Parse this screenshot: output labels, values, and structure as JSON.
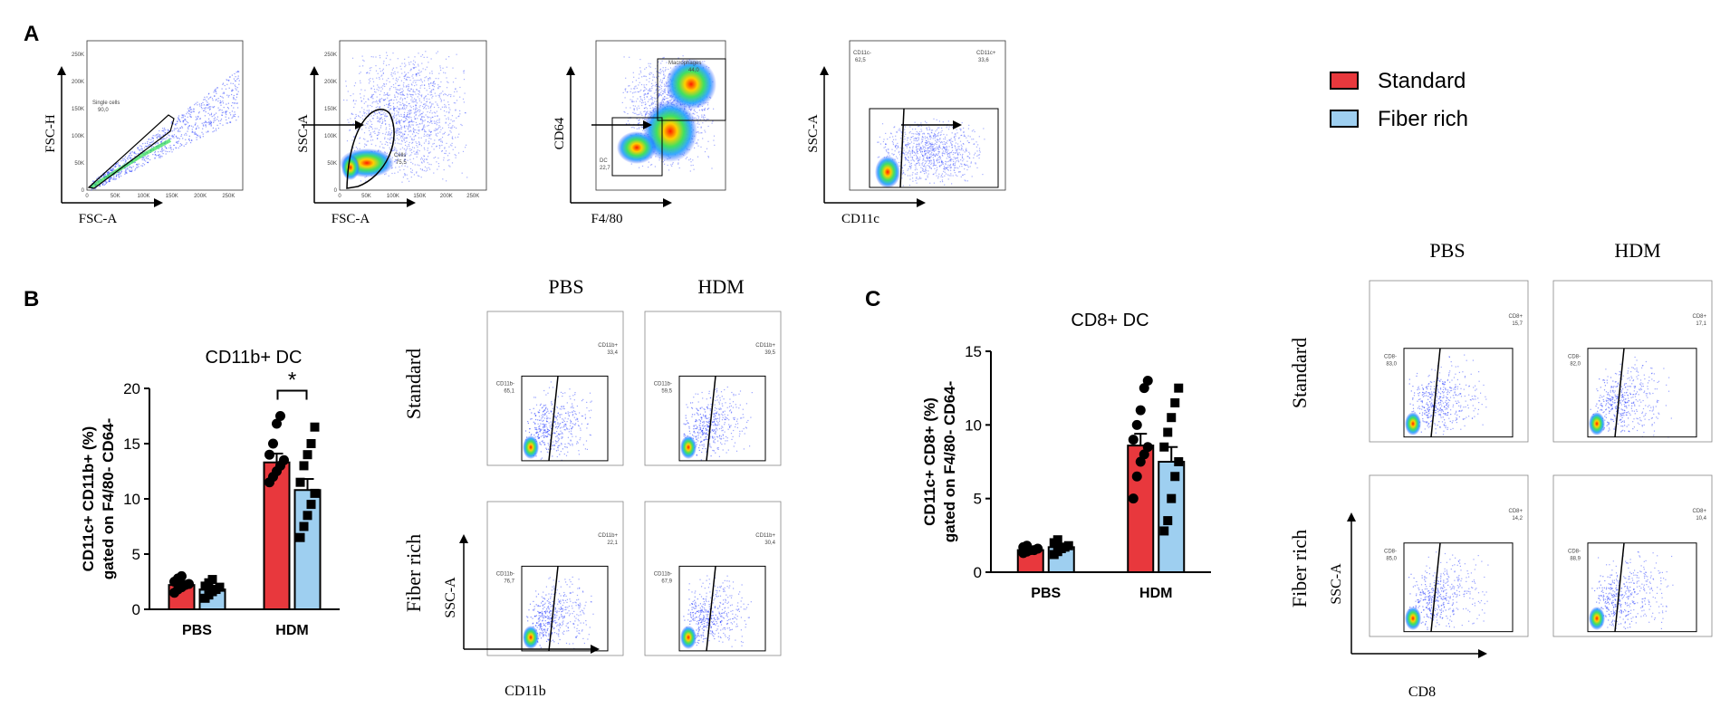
{
  "panel_labels": {
    "a": "A",
    "b": "B",
    "c": "C"
  },
  "legend": [
    {
      "label": "Standard",
      "color": "#e8383d"
    },
    {
      "label": "Fiber rich",
      "color": "#9ecff0"
    }
  ],
  "gating": [
    {
      "ylabel": "FSC-H",
      "xlabel": "FSC-A",
      "gates": [
        {
          "name": "Single cells",
          "value": "90,0"
        }
      ]
    },
    {
      "ylabel": "SSC-A",
      "xlabel": "FSC-A",
      "gates": [
        {
          "name": "Cells",
          "value": "75,5"
        }
      ]
    },
    {
      "ylabel": "CD64",
      "xlabel": "F4/80",
      "gates": [
        {
          "name": "Macrophages",
          "value": "44,0"
        },
        {
          "name": "DC",
          "value": "22,7"
        }
      ]
    },
    {
      "ylabel": "SSC-A",
      "xlabel": "CD11c",
      "gates": [
        {
          "name": "CD11c-",
          "value": "62,5"
        },
        {
          "name": "CD11c+",
          "value": "33,6"
        }
      ]
    }
  ],
  "flow_b": {
    "col_headers": [
      "PBS",
      "HDM"
    ],
    "row_headers": [
      "Standard",
      "Fiber rich"
    ],
    "ylabel": "SSC-A",
    "xlabel": "CD11b",
    "cells": [
      {
        "neg": "CD11b-",
        "neg_val": "65,1",
        "pos": "CD11b+",
        "pos_val": "33,4"
      },
      {
        "neg": "CD11b-",
        "neg_val": "59,5",
        "pos": "CD11b+",
        "pos_val": "39,5"
      },
      {
        "neg": "CD11b-",
        "neg_val": "76,7",
        "pos": "CD11b+",
        "pos_val": "22,1"
      },
      {
        "neg": "CD11b-",
        "neg_val": "67,9",
        "pos": "CD11b+",
        "pos_val": "30,4"
      }
    ]
  },
  "flow_c": {
    "col_headers": [
      "PBS",
      "HDM"
    ],
    "row_headers": [
      "Standard",
      "Fiber rich"
    ],
    "ylabel": "SSC-A",
    "xlabel": "CD8",
    "cells": [
      {
        "neg": "CD8-",
        "neg_val": "83,0",
        "pos": "CD8+",
        "pos_val": "15,7"
      },
      {
        "neg": "CD8-",
        "neg_val": "82,0",
        "pos": "CD8+",
        "pos_val": "17,1"
      },
      {
        "neg": "CD8-",
        "neg_val": "85,0",
        "pos": "CD8+",
        "pos_val": "14,2"
      },
      {
        "neg": "CD8-",
        "neg_val": "88,9",
        "pos": "CD8+",
        "pos_val": "10,4"
      }
    ]
  },
  "chart_data": [
    {
      "type": "bar",
      "title": "CD11b+ DC",
      "ylabel": "CD11c+ CD11b+ (%)\ngated on F4/80- CD64-",
      "categories": [
        "PBS",
        "HDM"
      ],
      "ylim": [
        0,
        20
      ],
      "yticks": [
        0,
        5,
        10,
        15,
        20
      ],
      "series": [
        {
          "name": "Standard",
          "values": [
            2.2,
            13.3
          ],
          "sem": [
            0.3,
            0.8
          ],
          "points": [
            [
              1.5,
              1.8,
              2.0,
              2.2,
              2.3,
              2.5,
              2.8,
              3.0
            ],
            [
              11.5,
              12.0,
              12.5,
              13.0,
              13.5,
              14.0,
              15.0,
              16.8,
              17.5
            ]
          ]
        },
        {
          "name": "Fiber rich",
          "values": [
            1.8,
            10.8
          ],
          "sem": [
            0.2,
            1.0
          ],
          "points": [
            [
              1.0,
              1.3,
              1.6,
              1.8,
              2.0,
              2.1,
              2.4,
              2.7
            ],
            [
              6.5,
              7.5,
              8.5,
              9.5,
              10.5,
              11.5,
              13.0,
              14.0,
              15.0,
              16.5
            ]
          ]
        }
      ],
      "significance": [
        {
          "category": "HDM",
          "label": "*"
        }
      ]
    },
    {
      "type": "bar",
      "title": "CD8+ DC",
      "ylabel": "CD11c+ CD8+ (%)\ngated on F4/80- CD64-",
      "categories": [
        "PBS",
        "HDM"
      ],
      "ylim": [
        0,
        15
      ],
      "yticks": [
        0,
        5,
        10,
        15
      ],
      "series": [
        {
          "name": "Standard",
          "values": [
            1.5,
            8.6
          ],
          "sem": [
            0.1,
            0.8
          ],
          "points": [
            [
              1.3,
              1.4,
              1.5,
              1.5,
              1.6,
              1.7,
              1.8
            ],
            [
              5.0,
              6.5,
              7.5,
              8.0,
              8.5,
              9.0,
              10.0,
              11.0,
              12.5,
              13.0
            ]
          ]
        },
        {
          "name": "Fiber rich",
          "values": [
            1.7,
            7.5
          ],
          "sem": [
            0.15,
            1.0
          ],
          "points": [
            [
              1.2,
              1.4,
              1.6,
              1.7,
              1.8,
              2.0,
              2.2
            ],
            [
              2.8,
              3.5,
              5.0,
              6.5,
              7.5,
              8.5,
              9.5,
              10.5,
              11.5,
              12.5
            ]
          ]
        }
      ]
    }
  ]
}
